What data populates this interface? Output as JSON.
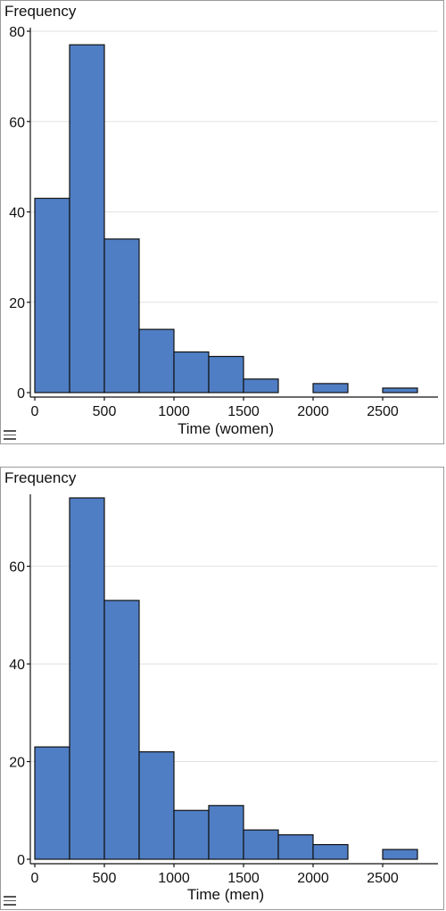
{
  "chart_data": [
    {
      "type": "bar",
      "ylabel": "Frequency",
      "xlabel": "Time (women)",
      "bin_width": 250,
      "bins": [
        {
          "start": 0,
          "end": 250,
          "count": 43
        },
        {
          "start": 250,
          "end": 500,
          "count": 77
        },
        {
          "start": 500,
          "end": 750,
          "count": 34
        },
        {
          "start": 750,
          "end": 1000,
          "count": 14
        },
        {
          "start": 1000,
          "end": 1250,
          "count": 9
        },
        {
          "start": 1250,
          "end": 1500,
          "count": 8
        },
        {
          "start": 1500,
          "end": 1750,
          "count": 3
        },
        {
          "start": 1750,
          "end": 2000,
          "count": 0
        },
        {
          "start": 2000,
          "end": 2250,
          "count": 2
        },
        {
          "start": 2250,
          "end": 2500,
          "count": 0
        },
        {
          "start": 2500,
          "end": 2750,
          "count": 1
        }
      ],
      "xlim": [
        0,
        2750
      ],
      "ylim": [
        0,
        80
      ],
      "xticks": [
        0,
        500,
        1000,
        1500,
        2000,
        2500
      ],
      "yticks": [
        0,
        20,
        40,
        60,
        80
      ],
      "grid": true,
      "bar_color": "#4f7ec4"
    },
    {
      "type": "bar",
      "ylabel": "Frequency",
      "xlabel": "Time (men)",
      "bin_width": 250,
      "bins": [
        {
          "start": 0,
          "end": 250,
          "count": 23
        },
        {
          "start": 250,
          "end": 500,
          "count": 74
        },
        {
          "start": 500,
          "end": 750,
          "count": 53
        },
        {
          "start": 750,
          "end": 1000,
          "count": 22
        },
        {
          "start": 1000,
          "end": 1250,
          "count": 10
        },
        {
          "start": 1250,
          "end": 1500,
          "count": 11
        },
        {
          "start": 1500,
          "end": 1750,
          "count": 6
        },
        {
          "start": 1750,
          "end": 2000,
          "count": 5
        },
        {
          "start": 2000,
          "end": 2250,
          "count": 3
        },
        {
          "start": 2250,
          "end": 2500,
          "count": 0
        },
        {
          "start": 2500,
          "end": 2750,
          "count": 2
        }
      ],
      "xlim": [
        0,
        2750
      ],
      "ylim": [
        0,
        74
      ],
      "xticks": [
        0,
        500,
        1000,
        1500,
        2000,
        2500
      ],
      "yticks": [
        0,
        20,
        40,
        60
      ],
      "grid": true,
      "bar_color": "#4f7ec4"
    }
  ]
}
